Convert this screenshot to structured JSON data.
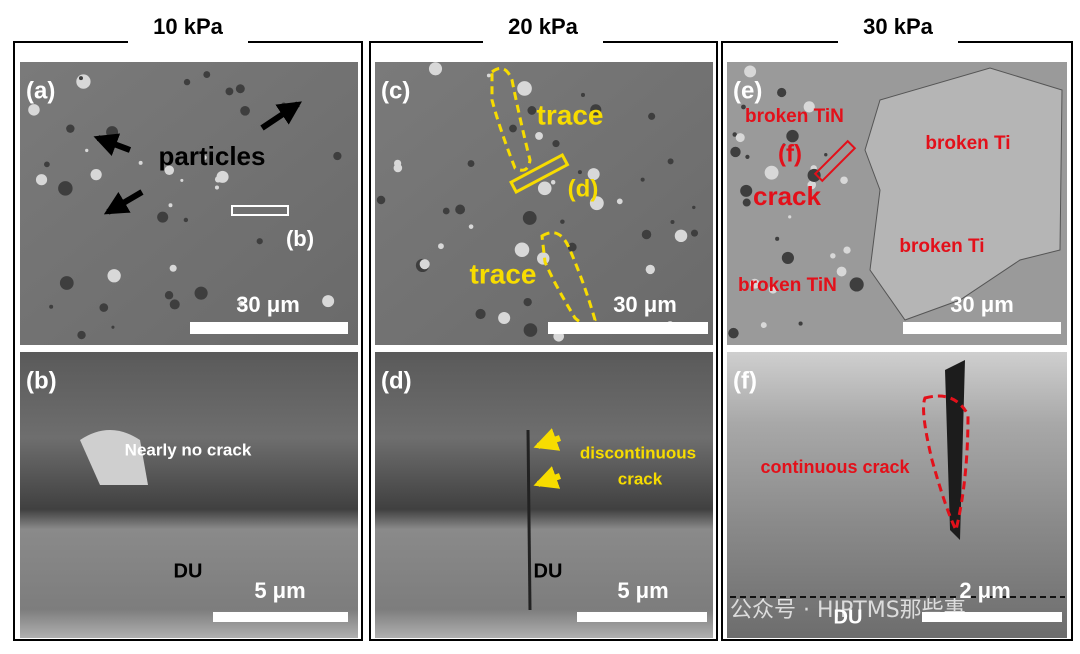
{
  "columns": [
    {
      "pressure": "10 kPa",
      "top": {
        "label": "(a)",
        "annotations": [
          "particles",
          "(b)"
        ],
        "scale": "30 μm"
      },
      "bottom": {
        "label": "(b)",
        "annotations": [
          "Nearly no crack",
          "DU"
        ],
        "scale": "5 μm"
      }
    },
    {
      "pressure": "20 kPa",
      "top": {
        "label": "(c)",
        "annotations": [
          "trace",
          "(d)",
          "trace"
        ],
        "scale": "30 μm"
      },
      "bottom": {
        "label": "(d)",
        "annotations": [
          "discontinuous",
          "crack",
          "DU"
        ],
        "scale": "5 μm"
      }
    },
    {
      "pressure": "30 kPa",
      "top": {
        "label": "(e)",
        "annotations": [
          "broken TiN",
          "(f)",
          "crack",
          "broken Ti",
          "broken Ti",
          "broken TiN"
        ],
        "scale": "30 μm"
      },
      "bottom": {
        "label": "(f)",
        "annotations": [
          "continuous crack",
          "DU"
        ],
        "scale": "2 μm"
      }
    }
  ],
  "watermark": "公众号 · HIPTMS那些事"
}
